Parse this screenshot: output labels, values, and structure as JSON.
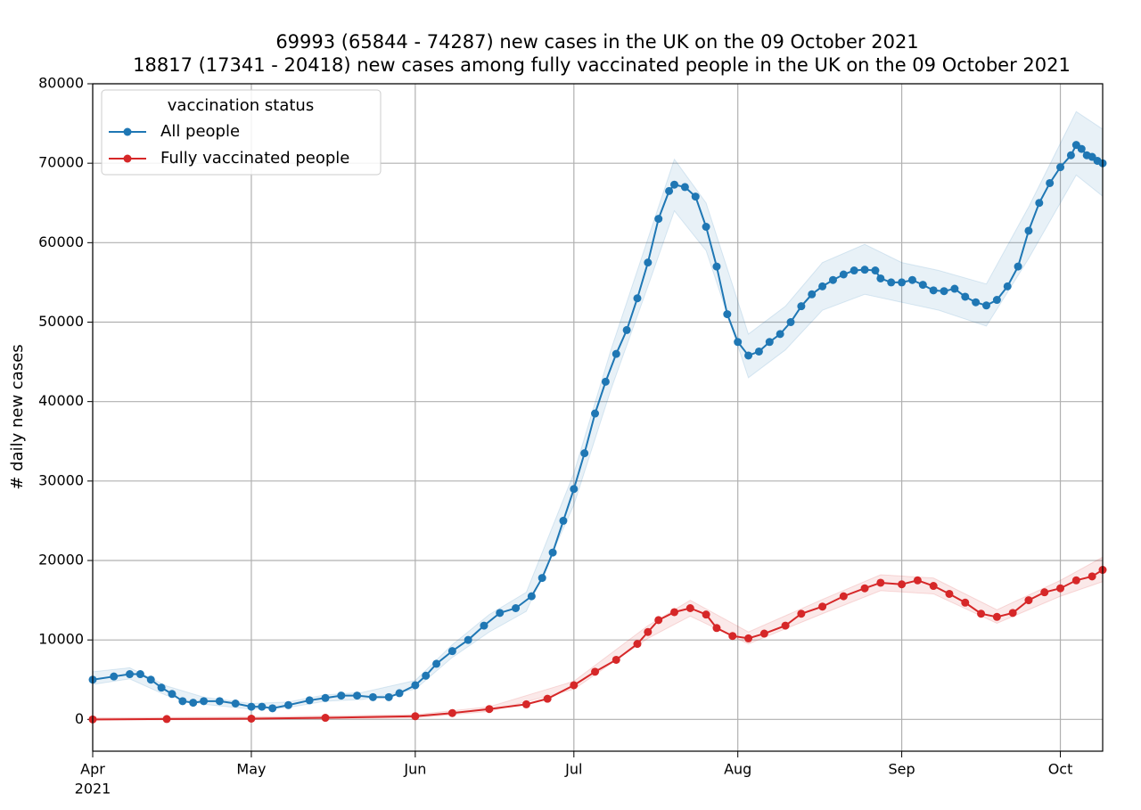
{
  "chart_data": {
    "type": "line",
    "title": "69993 (65844 - 74287) new cases in the UK on the 09 October 2021",
    "subtitle": "18817 (17341 - 20418) new cases among fully vaccinated people in the UK on the 09 October 2021",
    "y_label": "# daily new cases",
    "year_label": "2021",
    "legend_title": "vaccination status",
    "legend": "upper left",
    "grid": true,
    "xlim": [
      "2021-04-01",
      "2021-10-09"
    ],
    "xticks": [
      {
        "value": "2021-04-01",
        "label": "Apr"
      },
      {
        "value": "2021-05-01",
        "label": "May"
      },
      {
        "value": "2021-06-01",
        "label": "Jun"
      },
      {
        "value": "2021-07-01",
        "label": "Jul"
      },
      {
        "value": "2021-08-01",
        "label": "Aug"
      },
      {
        "value": "2021-09-01",
        "label": "Sep"
      },
      {
        "value": "2021-10-01",
        "label": "Oct"
      }
    ],
    "ylim": [
      -4000,
      80000
    ],
    "yticks": [
      0,
      10000,
      20000,
      30000,
      40000,
      50000,
      60000,
      70000,
      80000
    ],
    "series": [
      {
        "name": "All people",
        "color": "#1f77b4",
        "x": [
          "2021-04-01",
          "2021-04-05",
          "2021-04-08",
          "2021-04-10",
          "2021-04-12",
          "2021-04-14",
          "2021-04-16",
          "2021-04-18",
          "2021-04-20",
          "2021-04-22",
          "2021-04-25",
          "2021-04-28",
          "2021-05-01",
          "2021-05-03",
          "2021-05-05",
          "2021-05-08",
          "2021-05-12",
          "2021-05-15",
          "2021-05-18",
          "2021-05-21",
          "2021-05-24",
          "2021-05-27",
          "2021-05-29",
          "2021-06-01",
          "2021-06-03",
          "2021-06-05",
          "2021-06-08",
          "2021-06-11",
          "2021-06-14",
          "2021-06-17",
          "2021-06-20",
          "2021-06-23",
          "2021-06-25",
          "2021-06-27",
          "2021-06-29",
          "2021-07-01",
          "2021-07-03",
          "2021-07-05",
          "2021-07-07",
          "2021-07-09",
          "2021-07-11",
          "2021-07-13",
          "2021-07-15",
          "2021-07-17",
          "2021-07-19",
          "2021-07-20",
          "2021-07-22",
          "2021-07-24",
          "2021-07-26",
          "2021-07-28",
          "2021-07-30",
          "2021-08-01",
          "2021-08-03",
          "2021-08-05",
          "2021-08-07",
          "2021-08-09",
          "2021-08-11",
          "2021-08-13",
          "2021-08-15",
          "2021-08-17",
          "2021-08-19",
          "2021-08-21",
          "2021-08-23",
          "2021-08-25",
          "2021-08-27",
          "2021-08-28",
          "2021-08-30",
          "2021-09-01",
          "2021-09-03",
          "2021-09-05",
          "2021-09-07",
          "2021-09-09",
          "2021-09-11",
          "2021-09-13",
          "2021-09-15",
          "2021-09-17",
          "2021-09-19",
          "2021-09-21",
          "2021-09-23",
          "2021-09-25",
          "2021-09-27",
          "2021-09-29",
          "2021-10-01",
          "2021-10-03",
          "2021-10-04",
          "2021-10-05",
          "2021-10-06",
          "2021-10-07",
          "2021-10-08",
          "2021-10-09"
        ],
        "values": [
          5000,
          5400,
          5700,
          5700,
          5000,
          4000,
          3200,
          2300,
          2100,
          2300,
          2300,
          2000,
          1600,
          1600,
          1400,
          1800,
          2400,
          2700,
          3000,
          3000,
          2800,
          2800,
          3300,
          4300,
          5500,
          7000,
          8600,
          10000,
          11800,
          13400,
          14000,
          15500,
          17800,
          21000,
          25000,
          29000,
          33500,
          38500,
          42500,
          46000,
          49000,
          53000,
          57500,
          63000,
          66500,
          67300,
          67000,
          65800,
          62000,
          57000,
          51000,
          47500,
          45800,
          46300,
          47500,
          48500,
          50000,
          52000,
          53500,
          54500,
          55300,
          56000,
          56500,
          56600,
          56500,
          55500,
          55000,
          55000,
          55300,
          54700,
          54000,
          53900,
          54200,
          53200,
          52500,
          52100,
          52800,
          54500,
          57000,
          61500,
          65000,
          67500,
          69500,
          71000,
          72300,
          71800,
          71000,
          70800,
          70300,
          69993
        ],
        "band": {
          "x": [
            "2021-04-01",
            "2021-04-08",
            "2021-04-15",
            "2021-04-22",
            "2021-05-01",
            "2021-05-08",
            "2021-05-15",
            "2021-05-22",
            "2021-06-01",
            "2021-06-08",
            "2021-06-15",
            "2021-06-22",
            "2021-07-01",
            "2021-07-08",
            "2021-07-15",
            "2021-07-20",
            "2021-07-26",
            "2021-08-03",
            "2021-08-10",
            "2021-08-17",
            "2021-08-25",
            "2021-09-01",
            "2021-09-08",
            "2021-09-17",
            "2021-09-25",
            "2021-10-04",
            "2021-10-09"
          ],
          "lower": [
            4400,
            5100,
            3000,
            1900,
            1300,
            1500,
            2300,
            2500,
            3800,
            7800,
            11000,
            13600,
            27000,
            41500,
            54500,
            64000,
            59000,
            43000,
            46500,
            51500,
            53500,
            52500,
            51500,
            49500,
            58000,
            68500,
            65844
          ],
          "upper": [
            6000,
            6500,
            4200,
            2800,
            2000,
            2200,
            3100,
            3400,
            4900,
            9400,
            13200,
            16000,
            31000,
            46500,
            60500,
            70500,
            65000,
            48500,
            52000,
            57500,
            59800,
            57500,
            56500,
            54800,
            64500,
            76500,
            74287
          ]
        }
      },
      {
        "name": "Fully vaccinated people",
        "color": "#d62728",
        "x": [
          "2021-04-01",
          "2021-04-15",
          "2021-05-01",
          "2021-05-15",
          "2021-06-01",
          "2021-06-08",
          "2021-06-15",
          "2021-06-22",
          "2021-06-26",
          "2021-07-01",
          "2021-07-05",
          "2021-07-09",
          "2021-07-13",
          "2021-07-15",
          "2021-07-17",
          "2021-07-20",
          "2021-07-23",
          "2021-07-26",
          "2021-07-28",
          "2021-07-31",
          "2021-08-03",
          "2021-08-06",
          "2021-08-10",
          "2021-08-13",
          "2021-08-17",
          "2021-08-21",
          "2021-08-25",
          "2021-08-28",
          "2021-09-01",
          "2021-09-04",
          "2021-09-07",
          "2021-09-10",
          "2021-09-13",
          "2021-09-16",
          "2021-09-19",
          "2021-09-22",
          "2021-09-25",
          "2021-09-28",
          "2021-10-01",
          "2021-10-04",
          "2021-10-07",
          "2021-10-09"
        ],
        "values": [
          0,
          50,
          100,
          200,
          400,
          800,
          1300,
          1900,
          2600,
          4300,
          6000,
          7500,
          9500,
          11000,
          12500,
          13500,
          14000,
          13200,
          11500,
          10500,
          10200,
          10800,
          11800,
          13300,
          14200,
          15500,
          16500,
          17200,
          17000,
          17500,
          16800,
          15800,
          14700,
          13300,
          12900,
          13400,
          15000,
          16000,
          16500,
          17500,
          18000,
          18817
        ],
        "band": {
          "x": [
            "2021-04-01",
            "2021-05-01",
            "2021-06-01",
            "2021-06-15",
            "2021-07-01",
            "2021-07-15",
            "2021-07-23",
            "2021-08-03",
            "2021-08-17",
            "2021-08-28",
            "2021-09-07",
            "2021-09-19",
            "2021-10-01",
            "2021-10-09"
          ],
          "lower": [
            -100,
            0,
            200,
            1000,
            3800,
            10200,
            13000,
            9500,
            13300,
            16200,
            15800,
            12100,
            15500,
            17341
          ],
          "upper": [
            200,
            300,
            600,
            1600,
            4800,
            11800,
            15000,
            11000,
            15100,
            18200,
            17800,
            13800,
            17500,
            20418
          ]
        }
      }
    ]
  }
}
